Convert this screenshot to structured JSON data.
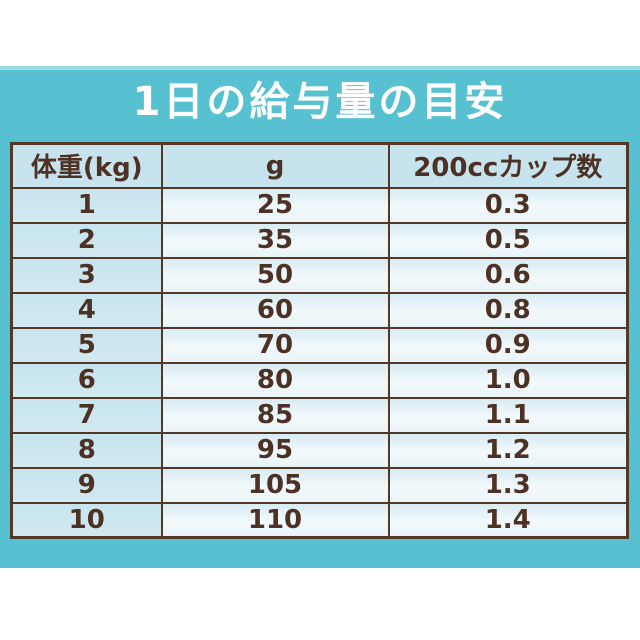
{
  "title": "1日の給与量の目安",
  "table": {
    "columns": [
      "体重(kg)",
      "g",
      "200ccカップ数"
    ],
    "rows": [
      [
        "1",
        "25",
        "0.3"
      ],
      [
        "2",
        "35",
        "0.5"
      ],
      [
        "3",
        "50",
        "0.6"
      ],
      [
        "4",
        "60",
        "0.8"
      ],
      [
        "5",
        "70",
        "0.9"
      ],
      [
        "6",
        "80",
        "1.0"
      ],
      [
        "7",
        "85",
        "1.1"
      ],
      [
        "8",
        "95",
        "1.2"
      ],
      [
        "9",
        "105",
        "1.3"
      ],
      [
        "10",
        "110",
        "1.4"
      ]
    ]
  },
  "chart_data": {
    "type": "table",
    "title": "1日の給与量の目安",
    "columns": [
      "体重(kg)",
      "g",
      "200ccカップ数"
    ],
    "rows": [
      [
        1,
        25,
        0.3
      ],
      [
        2,
        35,
        0.5
      ],
      [
        3,
        50,
        0.6
      ],
      [
        4,
        60,
        0.8
      ],
      [
        5,
        70,
        0.9
      ],
      [
        6,
        80,
        1.0
      ],
      [
        7,
        85,
        1.1
      ],
      [
        8,
        95,
        1.2
      ],
      [
        9,
        105,
        1.3
      ],
      [
        10,
        110,
        1.4
      ]
    ]
  },
  "colors": {
    "panel_teal": "#57c1d2",
    "panel_highlight": "#9adce4",
    "header_cell_bg": "#c6e3ee",
    "first_column_bg": "#cbe6ef",
    "data_cell_bg": "#edf6fa",
    "border_brown": "#543827",
    "text_brown": "#4c3124",
    "title_color": "#ffffff"
  }
}
